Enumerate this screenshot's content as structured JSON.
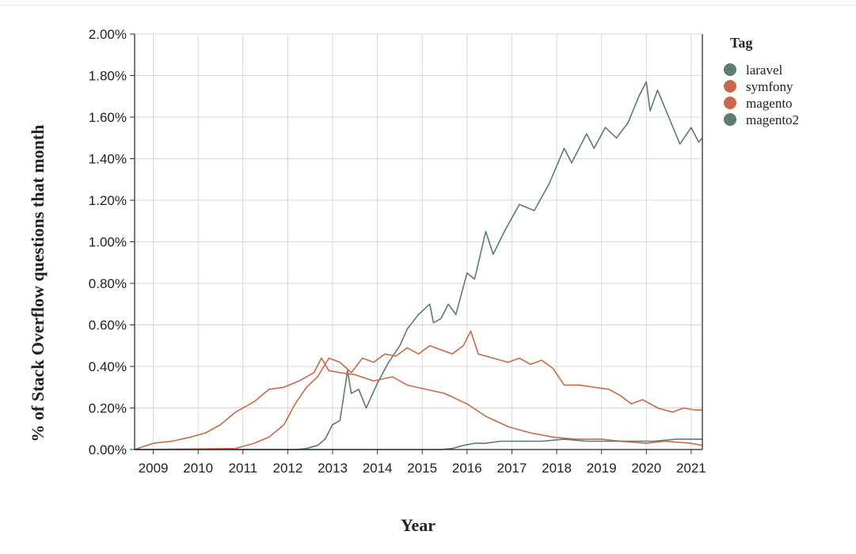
{
  "chart_data": {
    "type": "line",
    "xlabel": "Year",
    "ylabel": "% of Stack Overflow questions that month",
    "x_ticks": [
      "2009",
      "2010",
      "2011",
      "2012",
      "2013",
      "2014",
      "2015",
      "2016",
      "2017",
      "2018",
      "2019",
      "2020",
      "2021"
    ],
    "y_ticks": [
      "0.00%",
      "0.20%",
      "0.40%",
      "0.60%",
      "0.80%",
      "1.00%",
      "1.20%",
      "1.40%",
      "1.60%",
      "1.80%",
      "2.00%"
    ],
    "ylim": [
      0,
      2.0
    ],
    "xlim": [
      "2008-08",
      "2021-04"
    ],
    "grid": true,
    "legend": {
      "title": "Tag",
      "position": "right"
    },
    "series": [
      {
        "name": "laravel",
        "color": "#5b7b73",
        "points": [
          [
            "2008-08",
            0
          ],
          [
            "2012-03",
            0
          ],
          [
            "2012-06",
            0.005
          ],
          [
            "2012-09",
            0.02
          ],
          [
            "2012-11",
            0.05
          ],
          [
            "2013-01",
            0.12
          ],
          [
            "2013-03",
            0.14
          ],
          [
            "2013-05",
            0.38
          ],
          [
            "2013-06",
            0.27
          ],
          [
            "2013-08",
            0.29
          ],
          [
            "2013-10",
            0.2
          ],
          [
            "2014-01",
            0.32
          ],
          [
            "2014-04",
            0.42
          ],
          [
            "2014-07",
            0.5
          ],
          [
            "2014-09",
            0.58
          ],
          [
            "2014-12",
            0.65
          ],
          [
            "2015-03",
            0.7
          ],
          [
            "2015-04",
            0.61
          ],
          [
            "2015-06",
            0.63
          ],
          [
            "2015-08",
            0.7
          ],
          [
            "2015-10",
            0.65
          ],
          [
            "2016-01",
            0.85
          ],
          [
            "2016-03",
            0.82
          ],
          [
            "2016-06",
            1.05
          ],
          [
            "2016-08",
            0.94
          ],
          [
            "2016-11",
            1.05
          ],
          [
            "2017-03",
            1.18
          ],
          [
            "2017-07",
            1.15
          ],
          [
            "2017-11",
            1.28
          ],
          [
            "2018-03",
            1.45
          ],
          [
            "2018-05",
            1.38
          ],
          [
            "2018-09",
            1.52
          ],
          [
            "2018-11",
            1.45
          ],
          [
            "2019-02",
            1.55
          ],
          [
            "2019-05",
            1.5
          ],
          [
            "2019-08",
            1.57
          ],
          [
            "2019-11",
            1.7
          ],
          [
            "2020-01",
            1.77
          ],
          [
            "2020-02",
            1.63
          ],
          [
            "2020-04",
            1.73
          ],
          [
            "2020-07",
            1.6
          ],
          [
            "2020-10",
            1.47
          ],
          [
            "2021-01",
            1.55
          ],
          [
            "2021-03",
            1.48
          ],
          [
            "2021-04",
            1.5
          ]
        ]
      },
      {
        "name": "symfony",
        "color": "#c8694a",
        "points": [
          [
            "2008-08",
            0
          ],
          [
            "2009-01",
            0.03
          ],
          [
            "2009-06",
            0.04
          ],
          [
            "2009-11",
            0.06
          ],
          [
            "2010-03",
            0.08
          ],
          [
            "2010-07",
            0.12
          ],
          [
            "2010-11",
            0.18
          ],
          [
            "2011-04",
            0.23
          ],
          [
            "2011-08",
            0.29
          ],
          [
            "2011-12",
            0.3
          ],
          [
            "2012-04",
            0.33
          ],
          [
            "2012-08",
            0.37
          ],
          [
            "2012-10",
            0.44
          ],
          [
            "2012-12",
            0.38
          ],
          [
            "2013-03",
            0.37
          ],
          [
            "2013-07",
            0.36
          ],
          [
            "2013-12",
            0.33
          ],
          [
            "2014-05",
            0.35
          ],
          [
            "2014-09",
            0.31
          ],
          [
            "2015-02",
            0.29
          ],
          [
            "2015-07",
            0.27
          ],
          [
            "2016-01",
            0.22
          ],
          [
            "2016-06",
            0.16
          ],
          [
            "2016-12",
            0.11
          ],
          [
            "2017-06",
            0.08
          ],
          [
            "2017-12",
            0.06
          ],
          [
            "2018-06",
            0.05
          ],
          [
            "2019-01",
            0.05
          ],
          [
            "2019-06",
            0.04
          ],
          [
            "2020-01",
            0.03
          ],
          [
            "2020-06",
            0.04
          ],
          [
            "2021-01",
            0.03
          ],
          [
            "2021-04",
            0.02
          ]
        ]
      },
      {
        "name": "magento",
        "color": "#c8694a",
        "points": [
          [
            "2008-08",
            0
          ],
          [
            "2010-11",
            0.005
          ],
          [
            "2011-04",
            0.03
          ],
          [
            "2011-08",
            0.06
          ],
          [
            "2011-12",
            0.12
          ],
          [
            "2012-03",
            0.22
          ],
          [
            "2012-06",
            0.3
          ],
          [
            "2012-09",
            0.35
          ],
          [
            "2012-12",
            0.44
          ],
          [
            "2013-03",
            0.42
          ],
          [
            "2013-06",
            0.37
          ],
          [
            "2013-09",
            0.44
          ],
          [
            "2013-12",
            0.42
          ],
          [
            "2014-03",
            0.46
          ],
          [
            "2014-06",
            0.45
          ],
          [
            "2014-09",
            0.49
          ],
          [
            "2014-12",
            0.46
          ],
          [
            "2015-03",
            0.5
          ],
          [
            "2015-06",
            0.48
          ],
          [
            "2015-09",
            0.46
          ],
          [
            "2015-12",
            0.5
          ],
          [
            "2016-02",
            0.57
          ],
          [
            "2016-04",
            0.46
          ],
          [
            "2016-08",
            0.44
          ],
          [
            "2016-12",
            0.42
          ],
          [
            "2017-03",
            0.44
          ],
          [
            "2017-06",
            0.41
          ],
          [
            "2017-09",
            0.43
          ],
          [
            "2017-12",
            0.39
          ],
          [
            "2018-03",
            0.31
          ],
          [
            "2018-07",
            0.31
          ],
          [
            "2018-11",
            0.3
          ],
          [
            "2019-03",
            0.29
          ],
          [
            "2019-06",
            0.26
          ],
          [
            "2019-09",
            0.22
          ],
          [
            "2019-12",
            0.24
          ],
          [
            "2020-04",
            0.2
          ],
          [
            "2020-08",
            0.18
          ],
          [
            "2020-11",
            0.2
          ],
          [
            "2021-02",
            0.19
          ],
          [
            "2021-04",
            0.19
          ]
        ]
      },
      {
        "name": "magento2",
        "color": "#5b7b73",
        "points": [
          [
            "2008-08",
            0
          ],
          [
            "2015-06",
            0
          ],
          [
            "2015-09",
            0.005
          ],
          [
            "2015-12",
            0.02
          ],
          [
            "2016-03",
            0.03
          ],
          [
            "2016-06",
            0.03
          ],
          [
            "2016-10",
            0.04
          ],
          [
            "2017-03",
            0.04
          ],
          [
            "2017-09",
            0.04
          ],
          [
            "2018-03",
            0.05
          ],
          [
            "2018-09",
            0.04
          ],
          [
            "2019-03",
            0.04
          ],
          [
            "2019-09",
            0.04
          ],
          [
            "2020-03",
            0.04
          ],
          [
            "2020-09",
            0.05
          ],
          [
            "2021-01",
            0.05
          ],
          [
            "2021-04",
            0.05
          ]
        ]
      }
    ]
  }
}
